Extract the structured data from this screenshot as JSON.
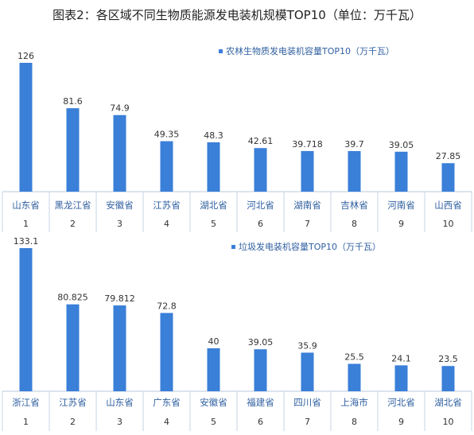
{
  "title": "图表2：各区域不同生物质能源发电装机规模TOP10（单位：万千瓦）",
  "chart_data": [
    {
      "type": "bar",
      "legend": "农林生物质发电装机容量TOP10（万千瓦）",
      "legend_position": "top-right",
      "categories": [
        "山东省",
        "黑龙江省",
        "安徽省",
        "江苏省",
        "湖北省",
        "河北省",
        "湖南省",
        "吉林省",
        "河南省",
        "山西省"
      ],
      "ranks": [
        "1",
        "2",
        "3",
        "4",
        "5",
        "6",
        "7",
        "8",
        "9",
        "10"
      ],
      "values": [
        126,
        81.6,
        74.9,
        49.35,
        48.3,
        42.61,
        39.718,
        39.7,
        39.05,
        27.85
      ],
      "value_labels": [
        "126",
        "81.6",
        "74.9",
        "49.35",
        "48.3",
        "42.61",
        "39.718",
        "39.7",
        "39.05",
        "27.85"
      ],
      "ylim": [
        0,
        126
      ],
      "color": "#3a7fd8"
    },
    {
      "type": "bar",
      "legend": "垃圾发电装机容量TOP10（万千瓦）",
      "legend_position": "top-right",
      "categories": [
        "浙江省",
        "江苏省",
        "山东省",
        "广东省",
        "安徽省",
        "福建省",
        "四川省",
        "上海市",
        "河北省",
        "湖北省"
      ],
      "ranks": [
        "1",
        "2",
        "3",
        "4",
        "5",
        "6",
        "7",
        "8",
        "9",
        "10"
      ],
      "values": [
        133.1,
        80.825,
        79.812,
        72.8,
        40,
        39.05,
        35.9,
        25.5,
        24.1,
        23.5
      ],
      "value_labels": [
        "133.1",
        "80.825",
        "79.812",
        "72.8",
        "40",
        "39.05",
        "35.9",
        "25.5",
        "24.1",
        "23.5"
      ],
      "ylim": [
        0,
        133.1
      ],
      "color": "#3a7fd8"
    }
  ]
}
